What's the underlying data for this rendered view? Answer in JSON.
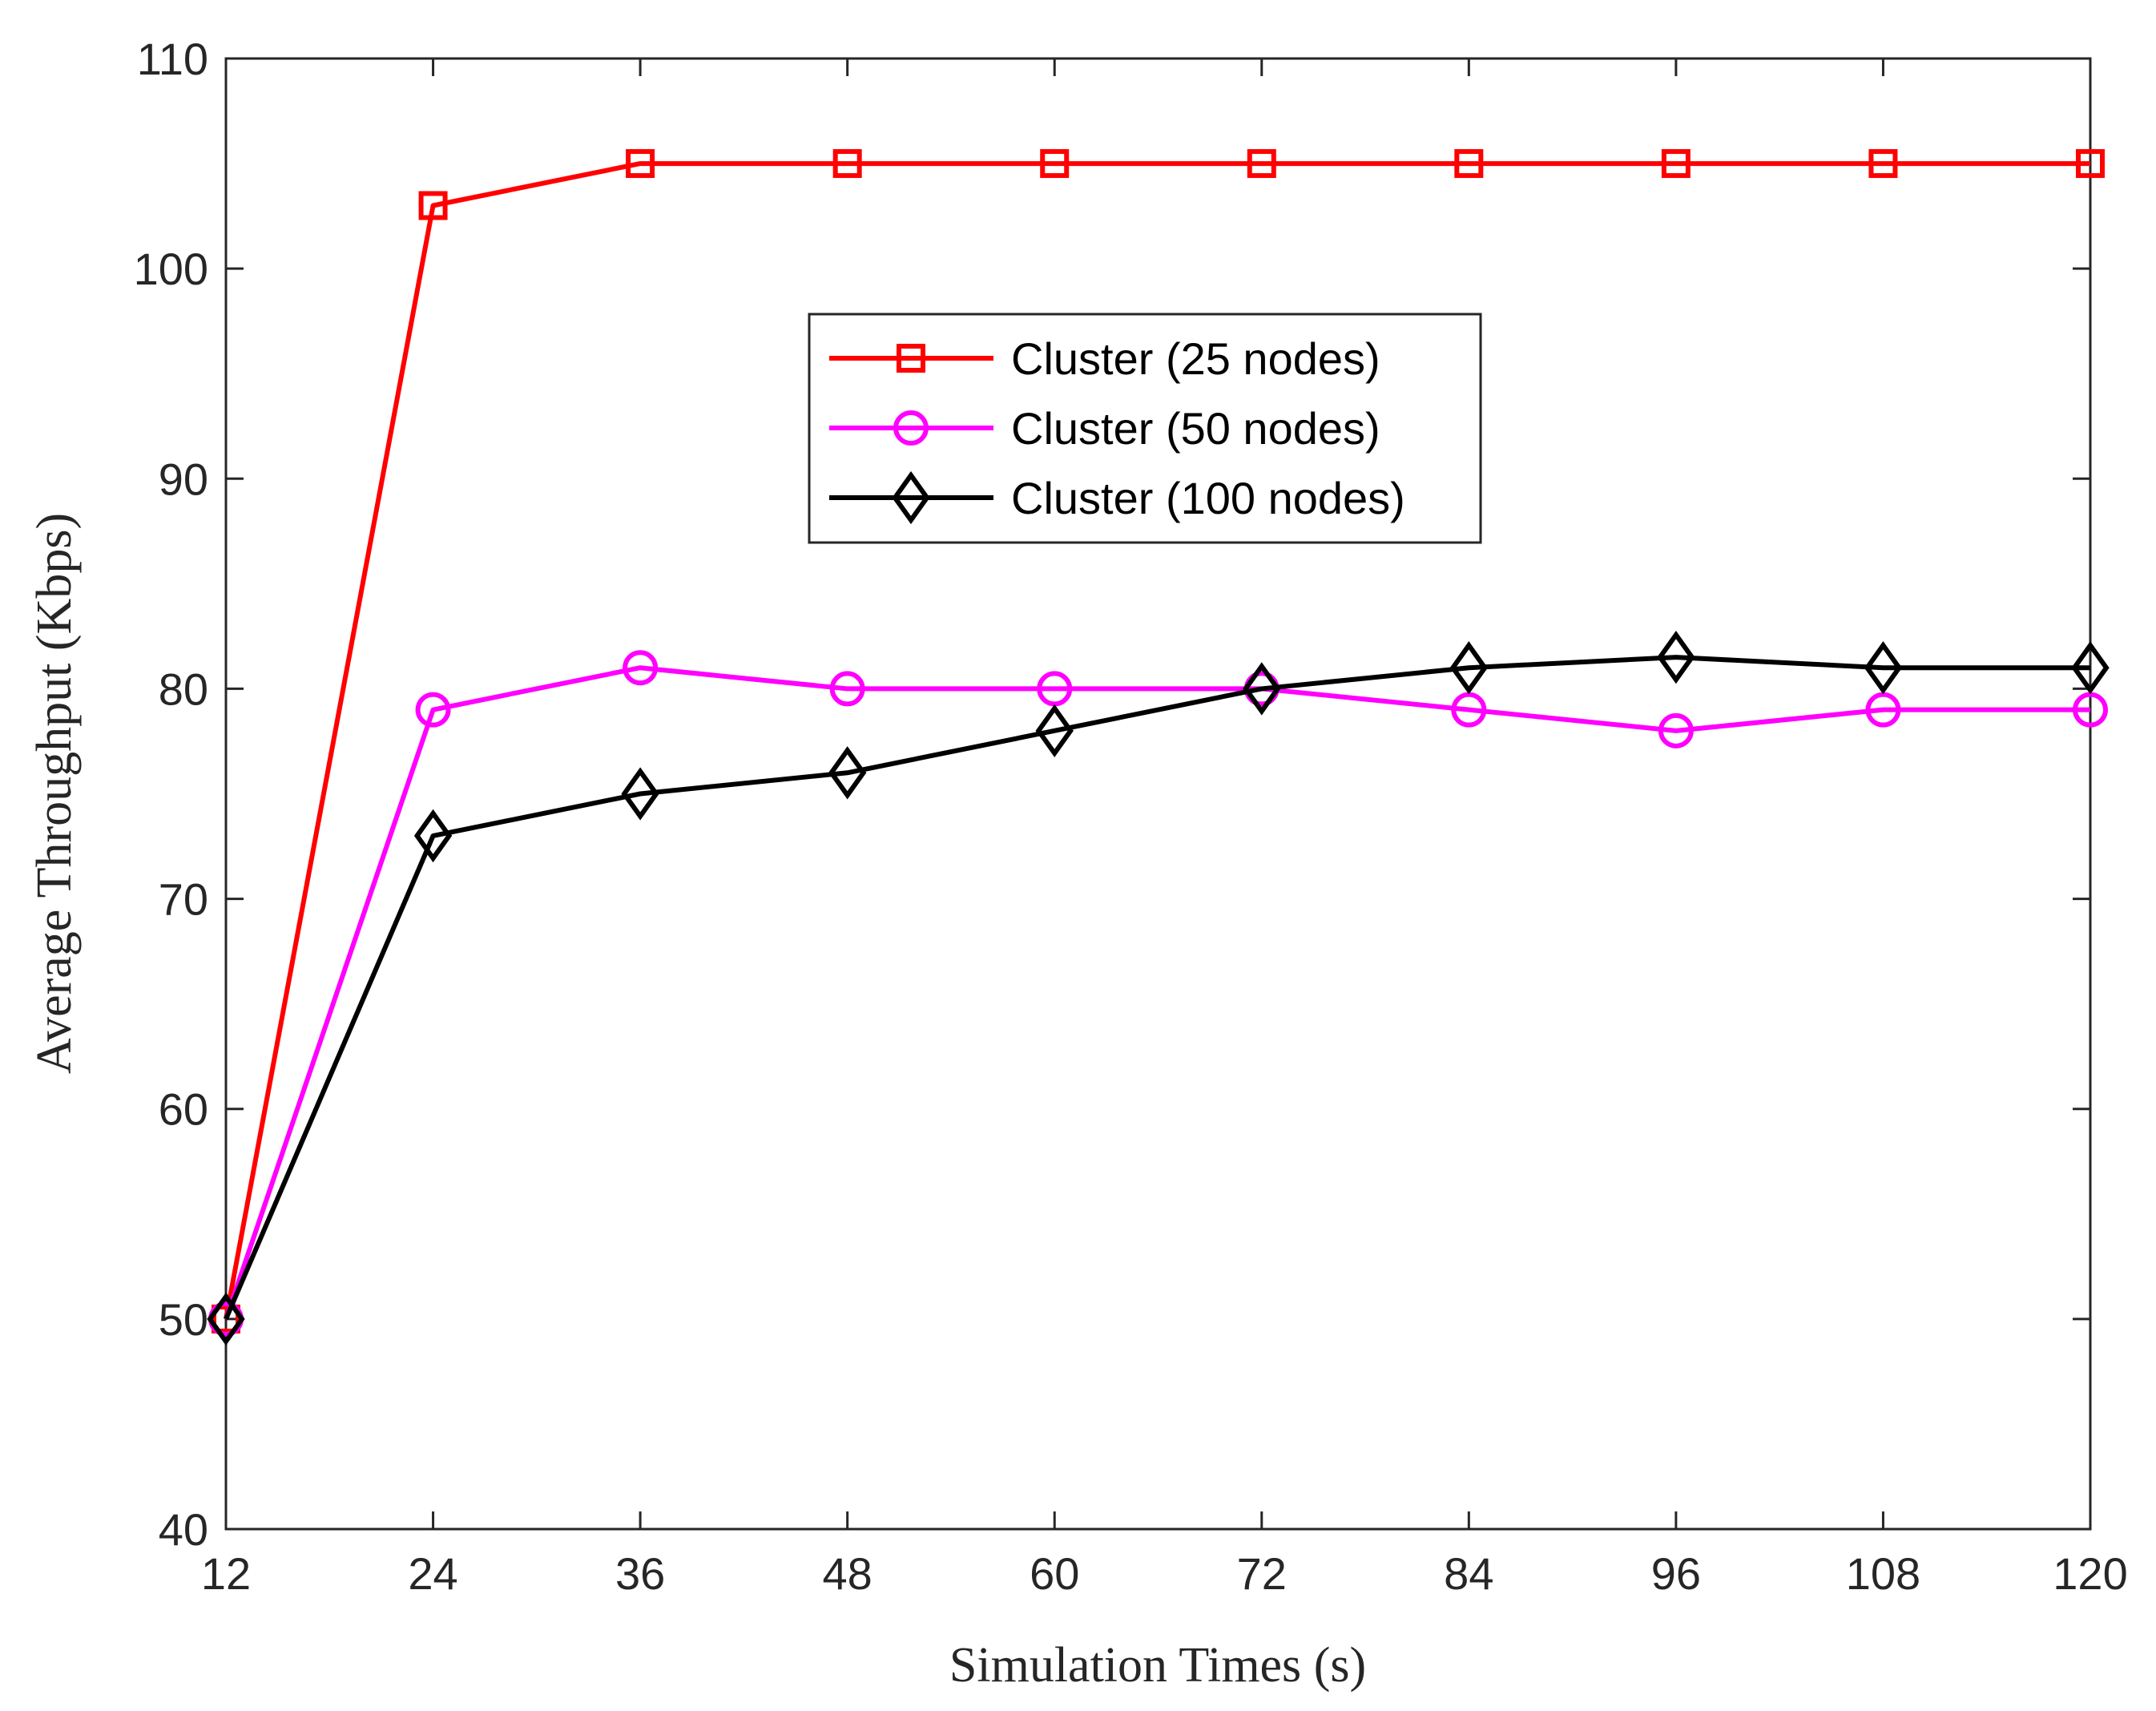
{
  "chart_data": {
    "type": "line",
    "title": "",
    "xlabel": "Simulation Times (s)",
    "ylabel": "Average Throughput (Kbps)",
    "x": [
      12,
      24,
      36,
      48,
      60,
      72,
      84,
      96,
      108,
      120
    ],
    "xlim": [
      12,
      120
    ],
    "ylim": [
      40,
      110
    ],
    "xticks": [
      "12",
      "24",
      "36",
      "48",
      "60",
      "72",
      "84",
      "96",
      "108",
      "120"
    ],
    "yticks": [
      "40",
      "50",
      "60",
      "70",
      "80",
      "90",
      "100",
      "110"
    ],
    "grid": false,
    "legend_position": "upper-center",
    "series": [
      {
        "name": "Cluster (25 nodes)",
        "color": "#ff0000",
        "marker": "square",
        "values": [
          50,
          103,
          105,
          105,
          105,
          105,
          105,
          105,
          105,
          105
        ]
      },
      {
        "name": "Cluster (50 nodes)",
        "color": "#ff00ff",
        "marker": "circle",
        "values": [
          50,
          79,
          81,
          80,
          80,
          80,
          79,
          78,
          79,
          79
        ]
      },
      {
        "name": "Cluster (100 nodes)",
        "color": "#000000",
        "marker": "diamond",
        "values": [
          50,
          73,
          75,
          76,
          78,
          80,
          81,
          81.5,
          81,
          81
        ]
      }
    ]
  }
}
